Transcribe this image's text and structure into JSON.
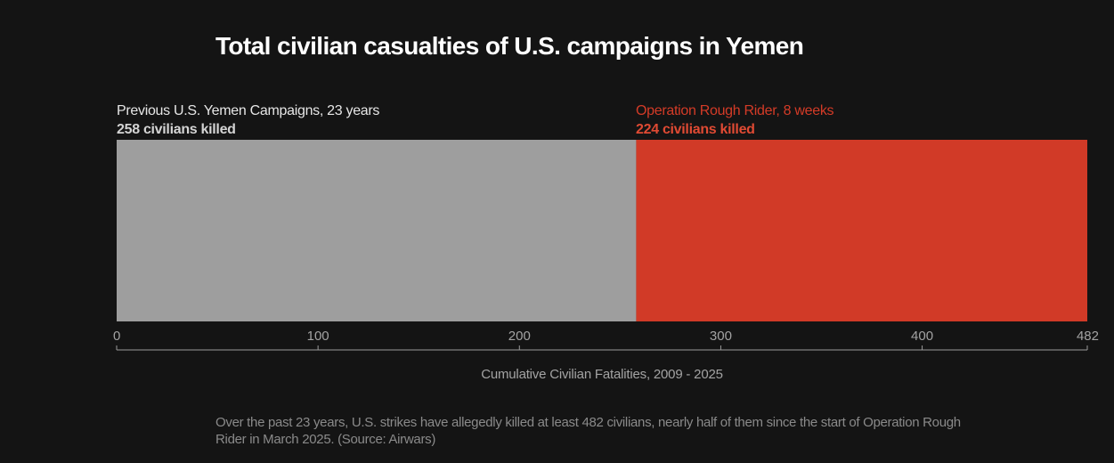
{
  "chart_data": {
    "type": "bar",
    "orientation": "horizontal-stacked",
    "title": "Total civilian casualties of U.S. campaigns in Yemen",
    "segments": [
      {
        "name": "Previous U.S. Yemen Campaigns, 23 years",
        "value": 258,
        "label": "258 civilians killed",
        "color": "#9e9e9e"
      },
      {
        "name": "Operation Rough Rider, 8 weeks",
        "value": 224,
        "label": "224 civilians killed",
        "color": "#d13a27"
      }
    ],
    "xlim": [
      0,
      482
    ],
    "xticks": [
      0,
      100,
      200,
      300,
      400,
      482
    ],
    "xlabel": "Cumulative Civilian Fatalities, 2009 - 2025",
    "grid": false,
    "legend": "inline labels above segments"
  },
  "caption": "Over the past 23 years, U.S. strikes have allegedly killed at least 482 civilians, nearly half of them since the start of Operation Rough Rider in March 2025. (Source: Airwars)",
  "colors": {
    "background": "#141414",
    "axis": "#9a9a9a",
    "tick_text": "#a3a3a3"
  }
}
